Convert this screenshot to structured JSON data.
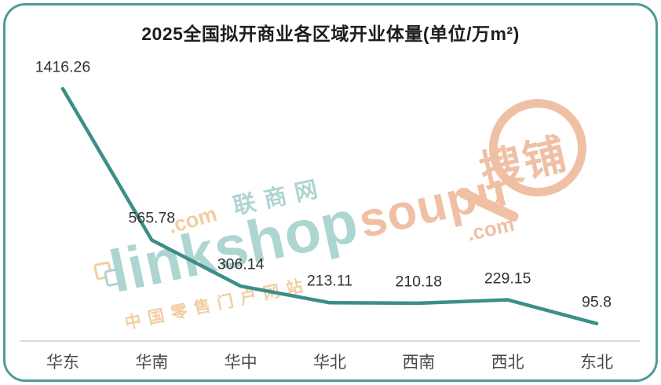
{
  "chart_data": {
    "type": "line",
    "title": "2025全国拟开商业各区域开业体量(单位/万m²)",
    "categories": [
      "华东",
      "华南",
      "华中",
      "华北",
      "西南",
      "西北",
      "东北"
    ],
    "values": [
      1416.26,
      565.78,
      306.14,
      213.11,
      210.18,
      229.15,
      95.8
    ],
    "value_labels": [
      "1416.26",
      "565.78",
      "306.14",
      "213.11",
      "210.18",
      "229.15",
      "95.8"
    ],
    "unit": "万m²",
    "ylim": [
      0,
      1500
    ],
    "grid": false,
    "legend": false,
    "line_color": "#3c8e88",
    "x_axis_line_color": "#dcdcdc"
  },
  "frame": {
    "border_color": "#4f9b95",
    "background": "#ffffff"
  },
  "watermarks": {
    "linkshop": {
      "brand": "linkshop",
      "domain": ".com",
      "cn_name": "联商网",
      "cn_tagline": "中国零售门户网站",
      "teal_color": "#add5d1",
      "orange_color": "#f2cda1"
    },
    "soupu": {
      "brand": "soupu",
      "domain": ".com",
      "cn_name": "搜铺",
      "color": "#f0c0a4"
    }
  }
}
